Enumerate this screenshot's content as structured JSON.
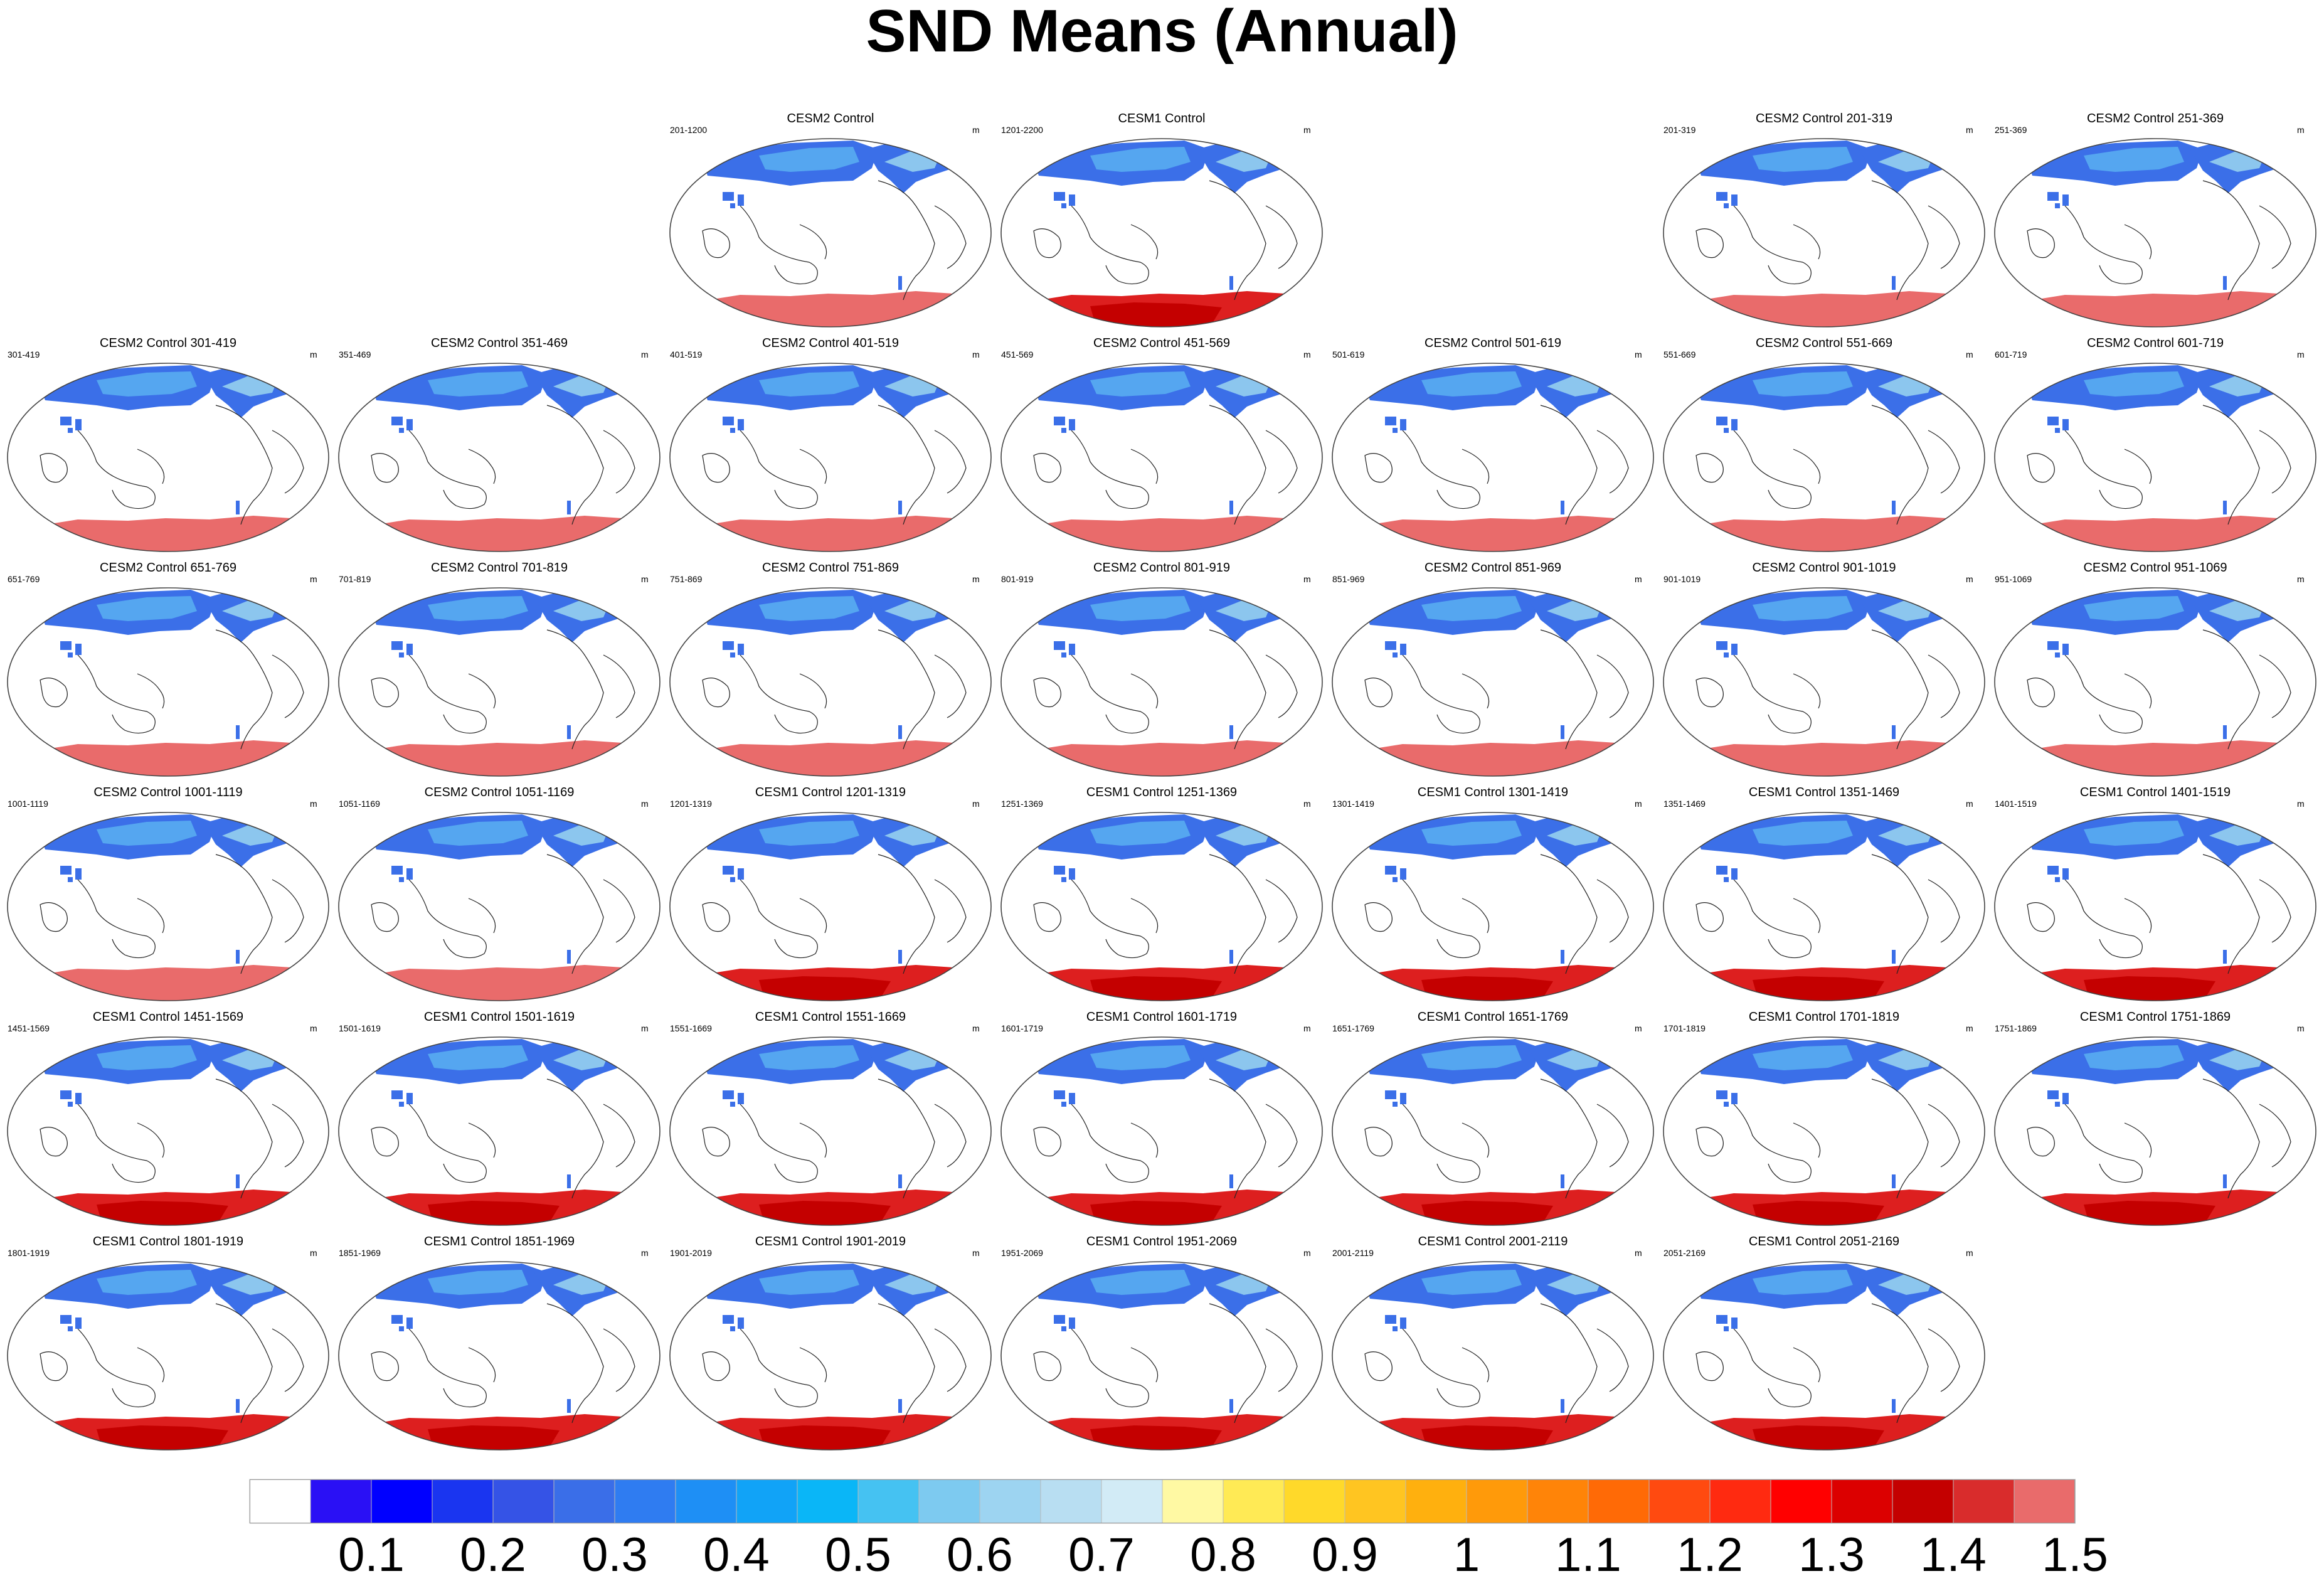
{
  "page": {
    "title": "SND Means (Annual)"
  },
  "units": "m",
  "colors": {
    "ocean": "#ffffff",
    "coast": "#222222",
    "northern_low": "#3b6fe8",
    "northern_mid": "#55a6f0",
    "northern_high": "#8cc6ee",
    "greenland": "#e96b6b",
    "antarctica_cesm2": "#e96b6b",
    "antarctica_cesm1": "#dd1f1f",
    "antarctica_cesm1_core": "#c40000"
  },
  "chart_data": {
    "type": "map-grid",
    "title": "SND Means (Annual)",
    "variable": "SND",
    "units": "m",
    "colorbar": {
      "tick_labels": [
        "0.1",
        "0.2",
        "0.3",
        "0.4",
        "0.5",
        "0.6",
        "0.7",
        "0.8",
        "0.9",
        "1",
        "1.1",
        "1.2",
        "1.3",
        "1.4",
        "1.5"
      ],
      "colors": [
        "#ffffff",
        "#2a10f5",
        "#0000ff",
        "#1a35f0",
        "#3553e6",
        "#3a6ee8",
        "#2f7cf1",
        "#1e8ff5",
        "#11a3f7",
        "#0ab6f7",
        "#45c2f2",
        "#7dcaf0",
        "#9dd4f1",
        "#b8def2",
        "#d2ebf6",
        "#fff9a3",
        "#ffea55",
        "#ffd92a",
        "#ffc521",
        "#ffb00e",
        "#ff9a0a",
        "#ff8408",
        "#ff6a06",
        "#ff4a10",
        "#ff2a10",
        "#ff0000",
        "#dc0000",
        "#c40000",
        "#d92c2c",
        "#e96b6b"
      ]
    },
    "panels": [
      {
        "row": 0,
        "col": 2,
        "model": "CESM2",
        "title": "CESM2 Control",
        "years": "201-1200"
      },
      {
        "row": 0,
        "col": 3,
        "model": "CESM1",
        "title": "CESM1 Control",
        "years": "1201-2200"
      },
      {
        "row": 0,
        "col": 5,
        "model": "CESM2",
        "title": "CESM2 Control 201-319",
        "years": "201-319"
      },
      {
        "row": 0,
        "col": 6,
        "model": "CESM2",
        "title": "CESM2 Control 251-369",
        "years": "251-369"
      },
      {
        "row": 1,
        "col": 0,
        "model": "CESM2",
        "title": "CESM2 Control 301-419",
        "years": "301-419"
      },
      {
        "row": 1,
        "col": 1,
        "model": "CESM2",
        "title": "CESM2 Control 351-469",
        "years": "351-469"
      },
      {
        "row": 1,
        "col": 2,
        "model": "CESM2",
        "title": "CESM2 Control 401-519",
        "years": "401-519"
      },
      {
        "row": 1,
        "col": 3,
        "model": "CESM2",
        "title": "CESM2 Control 451-569",
        "years": "451-569"
      },
      {
        "row": 1,
        "col": 4,
        "model": "CESM2",
        "title": "CESM2 Control 501-619",
        "years": "501-619"
      },
      {
        "row": 1,
        "col": 5,
        "model": "CESM2",
        "title": "CESM2 Control 551-669",
        "years": "551-669"
      },
      {
        "row": 1,
        "col": 6,
        "model": "CESM2",
        "title": "CESM2 Control 601-719",
        "years": "601-719"
      },
      {
        "row": 2,
        "col": 0,
        "model": "CESM2",
        "title": "CESM2 Control 651-769",
        "years": "651-769"
      },
      {
        "row": 2,
        "col": 1,
        "model": "CESM2",
        "title": "CESM2 Control 701-819",
        "years": "701-819"
      },
      {
        "row": 2,
        "col": 2,
        "model": "CESM2",
        "title": "CESM2 Control 751-869",
        "years": "751-869"
      },
      {
        "row": 2,
        "col": 3,
        "model": "CESM2",
        "title": "CESM2 Control 801-919",
        "years": "801-919"
      },
      {
        "row": 2,
        "col": 4,
        "model": "CESM2",
        "title": "CESM2 Control 851-969",
        "years": "851-969"
      },
      {
        "row": 2,
        "col": 5,
        "model": "CESM2",
        "title": "CESM2 Control 901-1019",
        "years": "901-1019"
      },
      {
        "row": 2,
        "col": 6,
        "model": "CESM2",
        "title": "CESM2 Control 951-1069",
        "years": "951-1069"
      },
      {
        "row": 3,
        "col": 0,
        "model": "CESM2",
        "title": "CESM2 Control 1001-1119",
        "years": "1001-1119"
      },
      {
        "row": 3,
        "col": 1,
        "model": "CESM2",
        "title": "CESM2 Control 1051-1169",
        "years": "1051-1169"
      },
      {
        "row": 3,
        "col": 2,
        "model": "CESM1",
        "title": "CESM1 Control 1201-1319",
        "years": "1201-1319"
      },
      {
        "row": 3,
        "col": 3,
        "model": "CESM1",
        "title": "CESM1 Control 1251-1369",
        "years": "1251-1369"
      },
      {
        "row": 3,
        "col": 4,
        "model": "CESM1",
        "title": "CESM1 Control 1301-1419",
        "years": "1301-1419"
      },
      {
        "row": 3,
        "col": 5,
        "model": "CESM1",
        "title": "CESM1 Control 1351-1469",
        "years": "1351-1469"
      },
      {
        "row": 3,
        "col": 6,
        "model": "CESM1",
        "title": "CESM1 Control 1401-1519",
        "years": "1401-1519"
      },
      {
        "row": 4,
        "col": 0,
        "model": "CESM1",
        "title": "CESM1 Control 1451-1569",
        "years": "1451-1569"
      },
      {
        "row": 4,
        "col": 1,
        "model": "CESM1",
        "title": "CESM1 Control 1501-1619",
        "years": "1501-1619"
      },
      {
        "row": 4,
        "col": 2,
        "model": "CESM1",
        "title": "CESM1 Control 1551-1669",
        "years": "1551-1669"
      },
      {
        "row": 4,
        "col": 3,
        "model": "CESM1",
        "title": "CESM1 Control 1601-1719",
        "years": "1601-1719"
      },
      {
        "row": 4,
        "col": 4,
        "model": "CESM1",
        "title": "CESM1 Control 1651-1769",
        "years": "1651-1769"
      },
      {
        "row": 4,
        "col": 5,
        "model": "CESM1",
        "title": "CESM1 Control 1701-1819",
        "years": "1701-1819"
      },
      {
        "row": 4,
        "col": 6,
        "model": "CESM1",
        "title": "CESM1 Control 1751-1869",
        "years": "1751-1869"
      },
      {
        "row": 5,
        "col": 0,
        "model": "CESM1",
        "title": "CESM1 Control 1801-1919",
        "years": "1801-1919"
      },
      {
        "row": 5,
        "col": 1,
        "model": "CESM1",
        "title": "CESM1 Control 1851-1969",
        "years": "1851-1969"
      },
      {
        "row": 5,
        "col": 2,
        "model": "CESM1",
        "title": "CESM1 Control 1901-2019",
        "years": "1901-2019"
      },
      {
        "row": 5,
        "col": 3,
        "model": "CESM1",
        "title": "CESM1 Control 1951-2069",
        "years": "1951-2069"
      },
      {
        "row": 5,
        "col": 4,
        "model": "CESM1",
        "title": "CESM1 Control 2001-2119",
        "years": "2001-2119"
      },
      {
        "row": 5,
        "col": 5,
        "model": "CESM1",
        "title": "CESM1 Control 2051-2169",
        "years": "2051-2169"
      }
    ]
  }
}
